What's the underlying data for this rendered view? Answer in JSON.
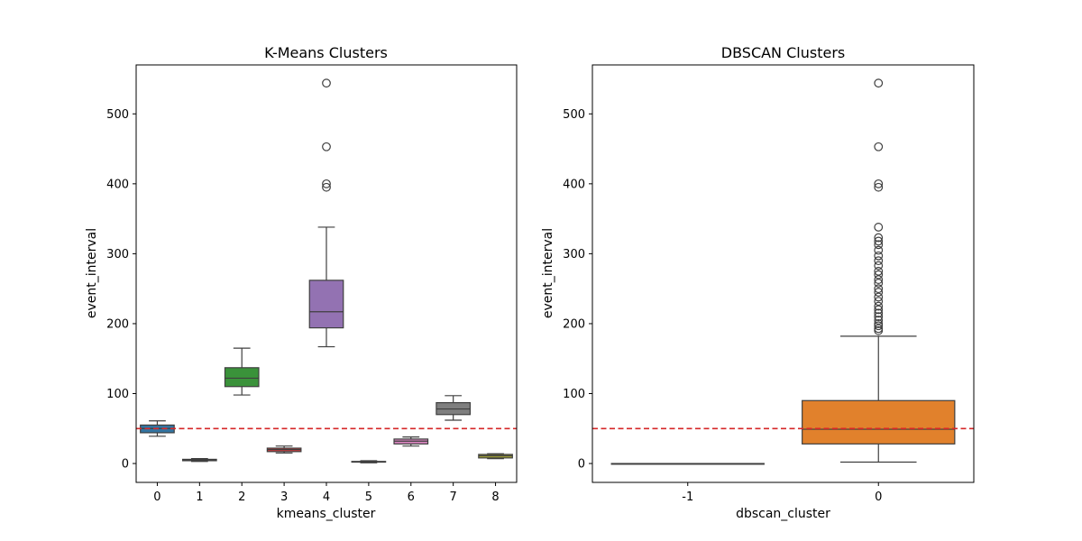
{
  "chart_data": [
    {
      "type": "box",
      "title": "K-Means Clusters",
      "xlabel": "kmeans_cluster",
      "ylabel": "event_interval",
      "ylim": [
        -27,
        570
      ],
      "yticks": [
        "0",
        "100",
        "200",
        "300",
        "400",
        "500"
      ],
      "categories": [
        "0",
        "1",
        "2",
        "3",
        "4",
        "5",
        "6",
        "7",
        "8"
      ],
      "reference_line": {
        "y": 50,
        "style": "dashed",
        "color": "#d62728"
      },
      "boxes": [
        {
          "category": "0",
          "color": "#3274a1",
          "whisker_low": 39,
          "q1": 44,
          "median": 50,
          "q3": 55,
          "whisker_high": 61,
          "outliers": []
        },
        {
          "category": "1",
          "color": "#e1812c",
          "whisker_low": 3,
          "q1": 4,
          "median": 5,
          "q3": 6,
          "whisker_high": 7,
          "outliers": []
        },
        {
          "category": "2",
          "color": "#3a923a",
          "whisker_low": 98,
          "q1": 110,
          "median": 122,
          "q3": 137,
          "whisker_high": 165,
          "outliers": []
        },
        {
          "category": "3",
          "color": "#c03d3e",
          "whisker_low": 15,
          "q1": 17,
          "median": 20,
          "q3": 22,
          "whisker_high": 25,
          "outliers": []
        },
        {
          "category": "4",
          "color": "#9372b2",
          "whisker_low": 167,
          "q1": 194,
          "median": 217,
          "q3": 262,
          "whisker_high": 338,
          "outliers": [
            395,
            400,
            453,
            544
          ]
        },
        {
          "category": "5",
          "color": "#845b53",
          "whisker_low": 1,
          "q1": 2,
          "median": 2.5,
          "q3": 3,
          "whisker_high": 4,
          "outliers": []
        },
        {
          "category": "6",
          "color": "#d684bd",
          "whisker_low": 25,
          "q1": 28,
          "median": 32,
          "q3": 35,
          "whisker_high": 38,
          "outliers": []
        },
        {
          "category": "7",
          "color": "#7f7f7f",
          "whisker_low": 62,
          "q1": 70,
          "median": 78,
          "q3": 87,
          "whisker_high": 97,
          "outliers": []
        },
        {
          "category": "8",
          "color": "#a9aa35",
          "whisker_low": 7,
          "q1": 8,
          "median": 11,
          "q3": 13,
          "whisker_high": 14,
          "outliers": []
        }
      ]
    },
    {
      "type": "box",
      "title": "DBSCAN Clusters",
      "xlabel": "dbscan_cluster",
      "ylabel": "event_interval",
      "ylim": [
        -27,
        570
      ],
      "yticks": [
        "0",
        "100",
        "200",
        "300",
        "400",
        "500"
      ],
      "categories": [
        "-1",
        "0"
      ],
      "reference_line": {
        "y": 50,
        "style": "dashed",
        "color": "#d62728"
      },
      "boxes": [
        {
          "category": "-1",
          "color": "#3274a1",
          "whisker_low": 0,
          "q1": 0,
          "median": 0,
          "q3": 0,
          "whisker_high": 0,
          "outliers": []
        },
        {
          "category": "0",
          "color": "#e1812c",
          "whisker_low": 2,
          "q1": 28,
          "median": 49,
          "q3": 90,
          "whisker_high": 182,
          "outliers": [
            190,
            193,
            197,
            200,
            205,
            210,
            215,
            220,
            225,
            232,
            238,
            245,
            250,
            258,
            263,
            270,
            275,
            283,
            290,
            297,
            305,
            313,
            318,
            323,
            338,
            395,
            400,
            453,
            544
          ]
        }
      ]
    }
  ]
}
